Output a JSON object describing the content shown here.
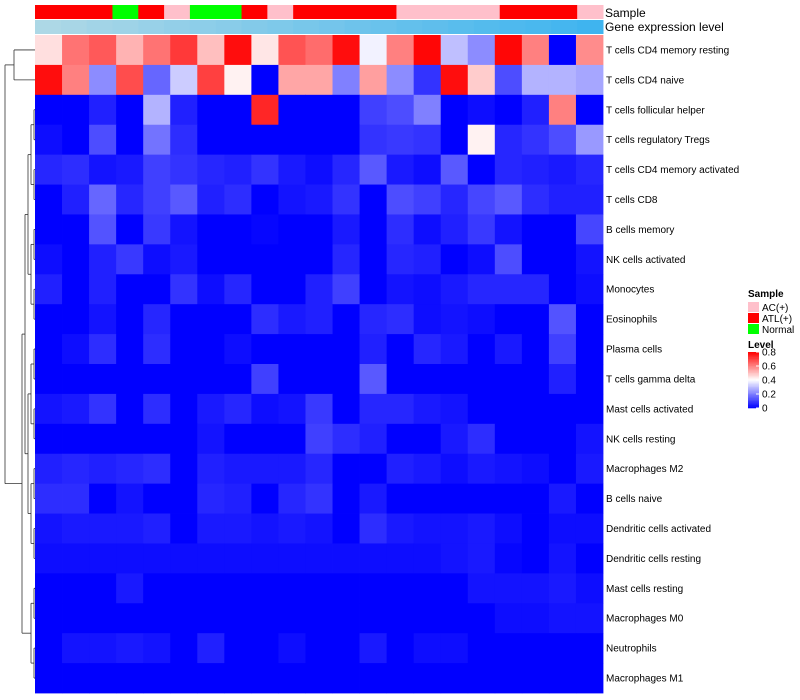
{
  "chart_data": {
    "type": "heatmap",
    "annotations": {
      "sample_label": "Sample",
      "gene_label": "Gene expression level",
      "sample_groups": [
        "ATL(+)",
        "ATL(+)",
        "ATL(+)",
        "Normal",
        "ATL(+)",
        "AC(+)",
        "Normal",
        "Normal",
        "ATL(+)",
        "AC(+)",
        "ATL(+)",
        "ATL(+)",
        "ATL(+)",
        "ATL(+)",
        "AC(+)",
        "AC(+)",
        "AC(+)",
        "AC(+)",
        "ATL(+)",
        "ATL(+)",
        "ATL(+)",
        "AC(+)"
      ],
      "gene_expression": [
        0.0,
        0.05,
        0.1,
        0.14,
        0.19,
        0.24,
        0.29,
        0.33,
        0.38,
        0.43,
        0.48,
        0.52,
        0.57,
        0.62,
        0.67,
        0.71,
        0.76,
        0.81,
        0.86,
        0.9,
        0.95,
        1.0
      ]
    },
    "rows": [
      "T cells CD4 memory resting",
      "T cells CD4 naive",
      "T cells follicular helper",
      "T cells regulatory  Tregs",
      "T cells CD4 memory activated",
      "T cells CD8",
      "B cells memory",
      "NK cells activated",
      "Monocytes",
      "Eosinophils",
      "Plasma cells",
      "T cells gamma delta",
      "Mast cells activated",
      "NK cells resting",
      "Macrophages M2",
      "B cells naive",
      "Dendritic cells activated",
      "Dendritic cells resting",
      "Mast cells resting",
      "Macrophages M0",
      "Neutrophils",
      "Macrophages M1"
    ],
    "values": [
      [
        0.45,
        0.62,
        0.66,
        0.52,
        0.62,
        0.71,
        0.5,
        0.78,
        0.44,
        0.67,
        0.63,
        0.78,
        0.38,
        0.6,
        0.79,
        0.3,
        0.22,
        0.79,
        0.6,
        0.0,
        0.58
      ],
      [
        0.78,
        0.6,
        0.22,
        0.68,
        0.16,
        0.32,
        0.7,
        0.42,
        0.0,
        0.54,
        0.54,
        0.2,
        0.55,
        0.22,
        0.08,
        0.78,
        0.48,
        0.12,
        0.28,
        0.28,
        0.26
      ],
      [
        0.0,
        0.0,
        0.05,
        0.0,
        0.28,
        0.05,
        0.0,
        0.0,
        0.74,
        0.0,
        0.0,
        0.0,
        0.1,
        0.12,
        0.2,
        0.0,
        0.02,
        0.0,
        0.05,
        0.6,
        0.0
      ],
      [
        0.02,
        0.0,
        0.12,
        0.0,
        0.18,
        0.07,
        0.0,
        0.0,
        0.0,
        0.0,
        0.0,
        0.0,
        0.08,
        0.09,
        0.08,
        0.0,
        0.42,
        0.06,
        0.08,
        0.12,
        0.24
      ],
      [
        0.06,
        0.07,
        0.03,
        0.04,
        0.1,
        0.08,
        0.06,
        0.05,
        0.08,
        0.04,
        0.02,
        0.06,
        0.14,
        0.04,
        0.02,
        0.14,
        0.0,
        0.06,
        0.05,
        0.04,
        0.06
      ],
      [
        0.0,
        0.05,
        0.16,
        0.06,
        0.1,
        0.14,
        0.05,
        0.07,
        0.0,
        0.03,
        0.04,
        0.08,
        0.0,
        0.12,
        0.1,
        0.06,
        0.11,
        0.14,
        0.07,
        0.05,
        0.05
      ],
      [
        0.0,
        0.0,
        0.13,
        0.0,
        0.09,
        0.03,
        0.0,
        0.0,
        0.01,
        0.0,
        0.0,
        0.04,
        0.0,
        0.07,
        0.02,
        0.05,
        0.09,
        0.03,
        0.0,
        0.0,
        0.11
      ],
      [
        0.02,
        0.0,
        0.05,
        0.09,
        0.02,
        0.04,
        0.0,
        0.0,
        0.0,
        0.0,
        0.0,
        0.06,
        0.0,
        0.06,
        0.05,
        0.0,
        0.02,
        0.12,
        0.0,
        0.0,
        0.03
      ],
      [
        0.05,
        0.0,
        0.05,
        0.0,
        0.0,
        0.08,
        0.02,
        0.06,
        0.0,
        0.0,
        0.05,
        0.1,
        0.0,
        0.03,
        0.02,
        0.04,
        0.06,
        0.06,
        0.06,
        0.0,
        0.02
      ],
      [
        0.0,
        0.0,
        0.03,
        0.0,
        0.06,
        0.0,
        0.0,
        0.0,
        0.07,
        0.04,
        0.05,
        0.0,
        0.06,
        0.07,
        0.02,
        0.03,
        0.02,
        0.0,
        0.0,
        0.13,
        0.0
      ],
      [
        0.0,
        0.02,
        0.07,
        0.0,
        0.07,
        0.0,
        0.0,
        0.02,
        0.0,
        0.0,
        0.0,
        0.0,
        0.05,
        0.0,
        0.06,
        0.04,
        0.0,
        0.04,
        0.0,
        0.1,
        0.0
      ],
      [
        0.0,
        0.0,
        0.0,
        0.0,
        0.0,
        0.0,
        0.0,
        0.0,
        0.1,
        0.0,
        0.0,
        0.0,
        0.14,
        0.0,
        0.0,
        0.0,
        0.0,
        0.0,
        0.0,
        0.05,
        0.0
      ],
      [
        0.03,
        0.04,
        0.08,
        0.0,
        0.07,
        0.0,
        0.04,
        0.06,
        0.02,
        0.03,
        0.09,
        0.0,
        0.06,
        0.06,
        0.04,
        0.03,
        0.0,
        0.0,
        0.0,
        0.0,
        0.0
      ],
      [
        0.0,
        0.0,
        0.0,
        0.0,
        0.0,
        0.0,
        0.03,
        0.0,
        0.0,
        0.0,
        0.1,
        0.07,
        0.05,
        0.0,
        0.0,
        0.04,
        0.07,
        0.0,
        0.0,
        0.0,
        0.03
      ],
      [
        0.05,
        0.06,
        0.05,
        0.06,
        0.07,
        0.0,
        0.05,
        0.04,
        0.04,
        0.04,
        0.06,
        0.0,
        0.0,
        0.05,
        0.04,
        0.02,
        0.04,
        0.03,
        0.02,
        0.0,
        0.04
      ],
      [
        0.07,
        0.07,
        0.0,
        0.03,
        0.0,
        0.0,
        0.06,
        0.05,
        0.0,
        0.06,
        0.08,
        0.0,
        0.04,
        0.0,
        0.0,
        0.0,
        0.0,
        0.0,
        0.0,
        0.04,
        0.0
      ],
      [
        0.03,
        0.04,
        0.04,
        0.04,
        0.05,
        0.0,
        0.04,
        0.04,
        0.03,
        0.04,
        0.03,
        0.0,
        0.07,
        0.04,
        0.03,
        0.03,
        0.04,
        0.02,
        0.0,
        0.02,
        0.02
      ],
      [
        0.02,
        0.02,
        0.02,
        0.02,
        0.02,
        0.02,
        0.02,
        0.02,
        0.02,
        0.02,
        0.02,
        0.02,
        0.02,
        0.02,
        0.02,
        0.03,
        0.04,
        0.01,
        0.0,
        0.03,
        0.0
      ],
      [
        0.0,
        0.0,
        0.0,
        0.04,
        0.0,
        0.0,
        0.0,
        0.0,
        0.0,
        0.0,
        0.0,
        0.0,
        0.0,
        0.0,
        0.0,
        0.0,
        0.03,
        0.03,
        0.03,
        0.04,
        0.02
      ],
      [
        0.0,
        0.0,
        0.0,
        0.0,
        0.0,
        0.0,
        0.0,
        0.0,
        0.0,
        0.0,
        0.0,
        0.0,
        0.0,
        0.0,
        0.0,
        0.0,
        0.0,
        0.02,
        0.02,
        0.03,
        0.03
      ],
      [
        0.0,
        0.03,
        0.03,
        0.04,
        0.03,
        0.0,
        0.05,
        0.0,
        0.0,
        0.02,
        0.0,
        0.0,
        0.04,
        0.0,
        0.02,
        0.02,
        0.0,
        0.0,
        0.0,
        0.0,
        0.0
      ],
      [
        0.0,
        0.0,
        0.0,
        0.0,
        0.0,
        0.0,
        0.0,
        0.0,
        0.0,
        0.0,
        0.0,
        0.0,
        0.0,
        0.0,
        0.0,
        0.0,
        0.0,
        0.0,
        0.0,
        0.0,
        0.0
      ]
    ],
    "value_range": [
      0,
      0.8
    ],
    "legend": {
      "sample_title": "Sample",
      "sample_items": [
        {
          "label": "AC(+)",
          "color": "#FFC0CB"
        },
        {
          "label": "ATL(+)",
          "color": "#FF0000"
        },
        {
          "label": "Normal",
          "color": "#00FF00"
        }
      ],
      "level_title": "Level",
      "level_ticks": [
        {
          "label": "0.8",
          "value": 0.8
        },
        {
          "label": "0.6",
          "value": 0.6
        },
        {
          "label": "0.4",
          "value": 0.4
        },
        {
          "label": "0.2",
          "value": 0.2
        },
        {
          "label": "0",
          "value": 0
        }
      ]
    },
    "colors": {
      "low": "#0000FF",
      "mid": "#FFFFFF",
      "high": "#FF0000",
      "gene_low": "#ADD8E6",
      "gene_high": "#3FB4EF"
    }
  }
}
